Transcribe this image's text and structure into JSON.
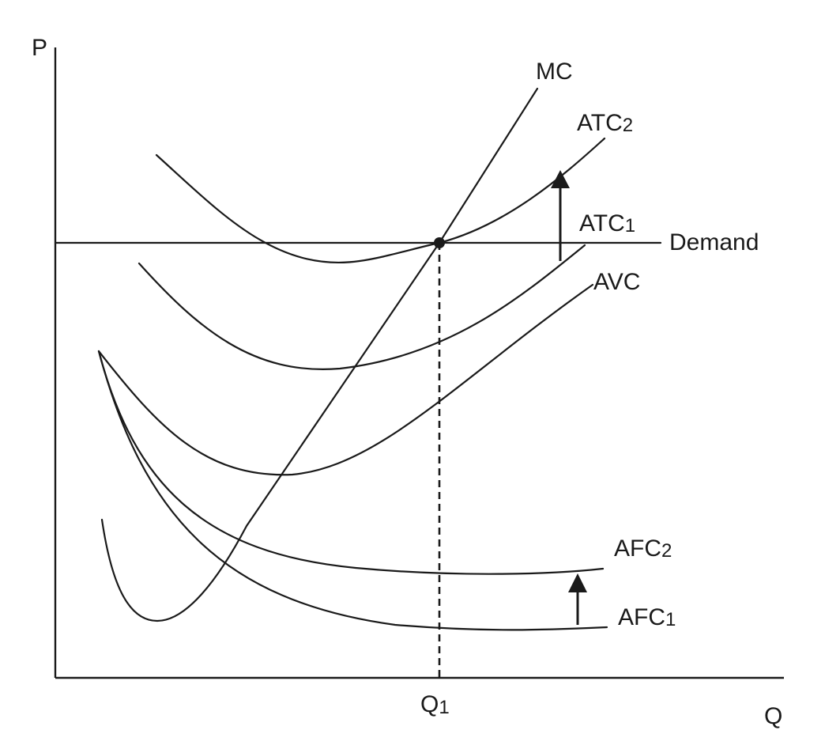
{
  "axes": {
    "y_label": "P",
    "x_label": "Q"
  },
  "equilibrium": {
    "quantity_label": "Q",
    "quantity_subscript": "1"
  },
  "curves": {
    "mc": "MC",
    "atc2": {
      "base": "ATC",
      "sub": "2"
    },
    "atc1": {
      "base": "ATC",
      "sub": "1"
    },
    "demand": "Demand",
    "avc": "AVC",
    "afc2": {
      "base": "AFC",
      "sub": "2"
    },
    "afc1": {
      "base": "AFC",
      "sub": "1"
    }
  }
}
